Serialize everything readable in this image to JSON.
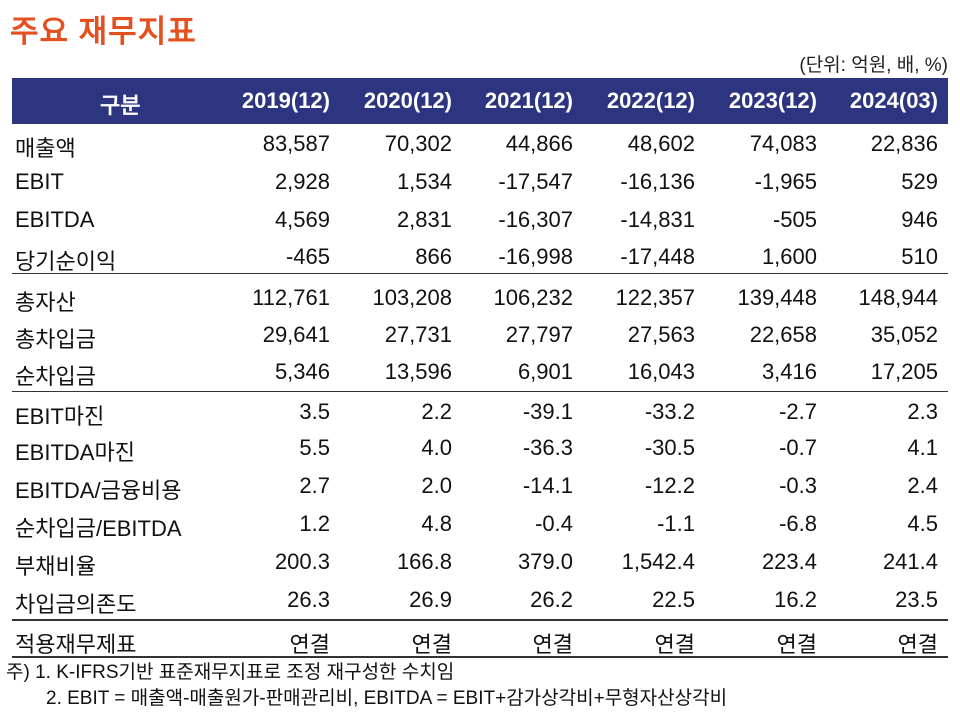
{
  "title": "주요 재무지표",
  "unit": "(단위: 억원, 배, %)",
  "table": {
    "header": {
      "label": "구분",
      "columns": [
        "2019(12)",
        "2020(12)",
        "2021(12)",
        "2022(12)",
        "2023(12)",
        "2024(03)"
      ]
    },
    "rows": [
      {
        "label": "매출액",
        "values": [
          "83,587",
          "70,302",
          "44,866",
          "48,602",
          "74,083",
          "22,836"
        ]
      },
      {
        "label": "EBIT",
        "values": [
          "2,928",
          "1,534",
          "-17,547",
          "-16,136",
          "-1,965",
          "529"
        ]
      },
      {
        "label": "EBITDA",
        "values": [
          "4,569",
          "2,831",
          "-16,307",
          "-14,831",
          "-505",
          "946"
        ]
      },
      {
        "label": "당기순이익",
        "values": [
          "-465",
          "866",
          "-16,998",
          "-17,448",
          "1,600",
          "510"
        ]
      },
      {
        "label": "총자산",
        "values": [
          "112,761",
          "103,208",
          "106,232",
          "122,357",
          "139,448",
          "148,944"
        ]
      },
      {
        "label": "총차입금",
        "values": [
          "29,641",
          "27,731",
          "27,797",
          "27,563",
          "22,658",
          "35,052"
        ]
      },
      {
        "label": "순차입금",
        "values": [
          "5,346",
          "13,596",
          "6,901",
          "16,043",
          "3,416",
          "17,205"
        ]
      },
      {
        "label": "EBIT마진",
        "values": [
          "3.5",
          "2.2",
          "-39.1",
          "-33.2",
          "-2.7",
          "2.3"
        ]
      },
      {
        "label": "EBITDA마진",
        "values": [
          "5.5",
          "4.0",
          "-36.3",
          "-30.5",
          "-0.7",
          "4.1"
        ]
      },
      {
        "label": "EBITDA/금융비용",
        "values": [
          "2.7",
          "2.0",
          "-14.1",
          "-12.2",
          "-0.3",
          "2.4"
        ]
      },
      {
        "label": "순차입금/EBITDA",
        "values": [
          "1.2",
          "4.8",
          "-0.4",
          "-1.1",
          "-6.8",
          "4.5"
        ]
      },
      {
        "label": "부채비율",
        "values": [
          "200.3",
          "166.8",
          "379.0",
          "1,542.4",
          "223.4",
          "241.4"
        ]
      },
      {
        "label": "차입금의존도",
        "values": [
          "26.3",
          "26.9",
          "26.2",
          "22.5",
          "16.2",
          "23.5"
        ]
      },
      {
        "label": "적용재무제표",
        "values": [
          "연결",
          "연결",
          "연결",
          "연결",
          "연결",
          "연결"
        ]
      }
    ]
  },
  "notes": [
    "주) 1. K-IFRS기반 표준재무지표로 조정 재구성한 수치임",
    "2. EBIT = 매출액-매출원가-판매관리비, EBITDA = EBIT+감가상각비+무형자산상각비"
  ],
  "colors": {
    "title": "#e5501f",
    "header_bg": "#2d3480"
  }
}
